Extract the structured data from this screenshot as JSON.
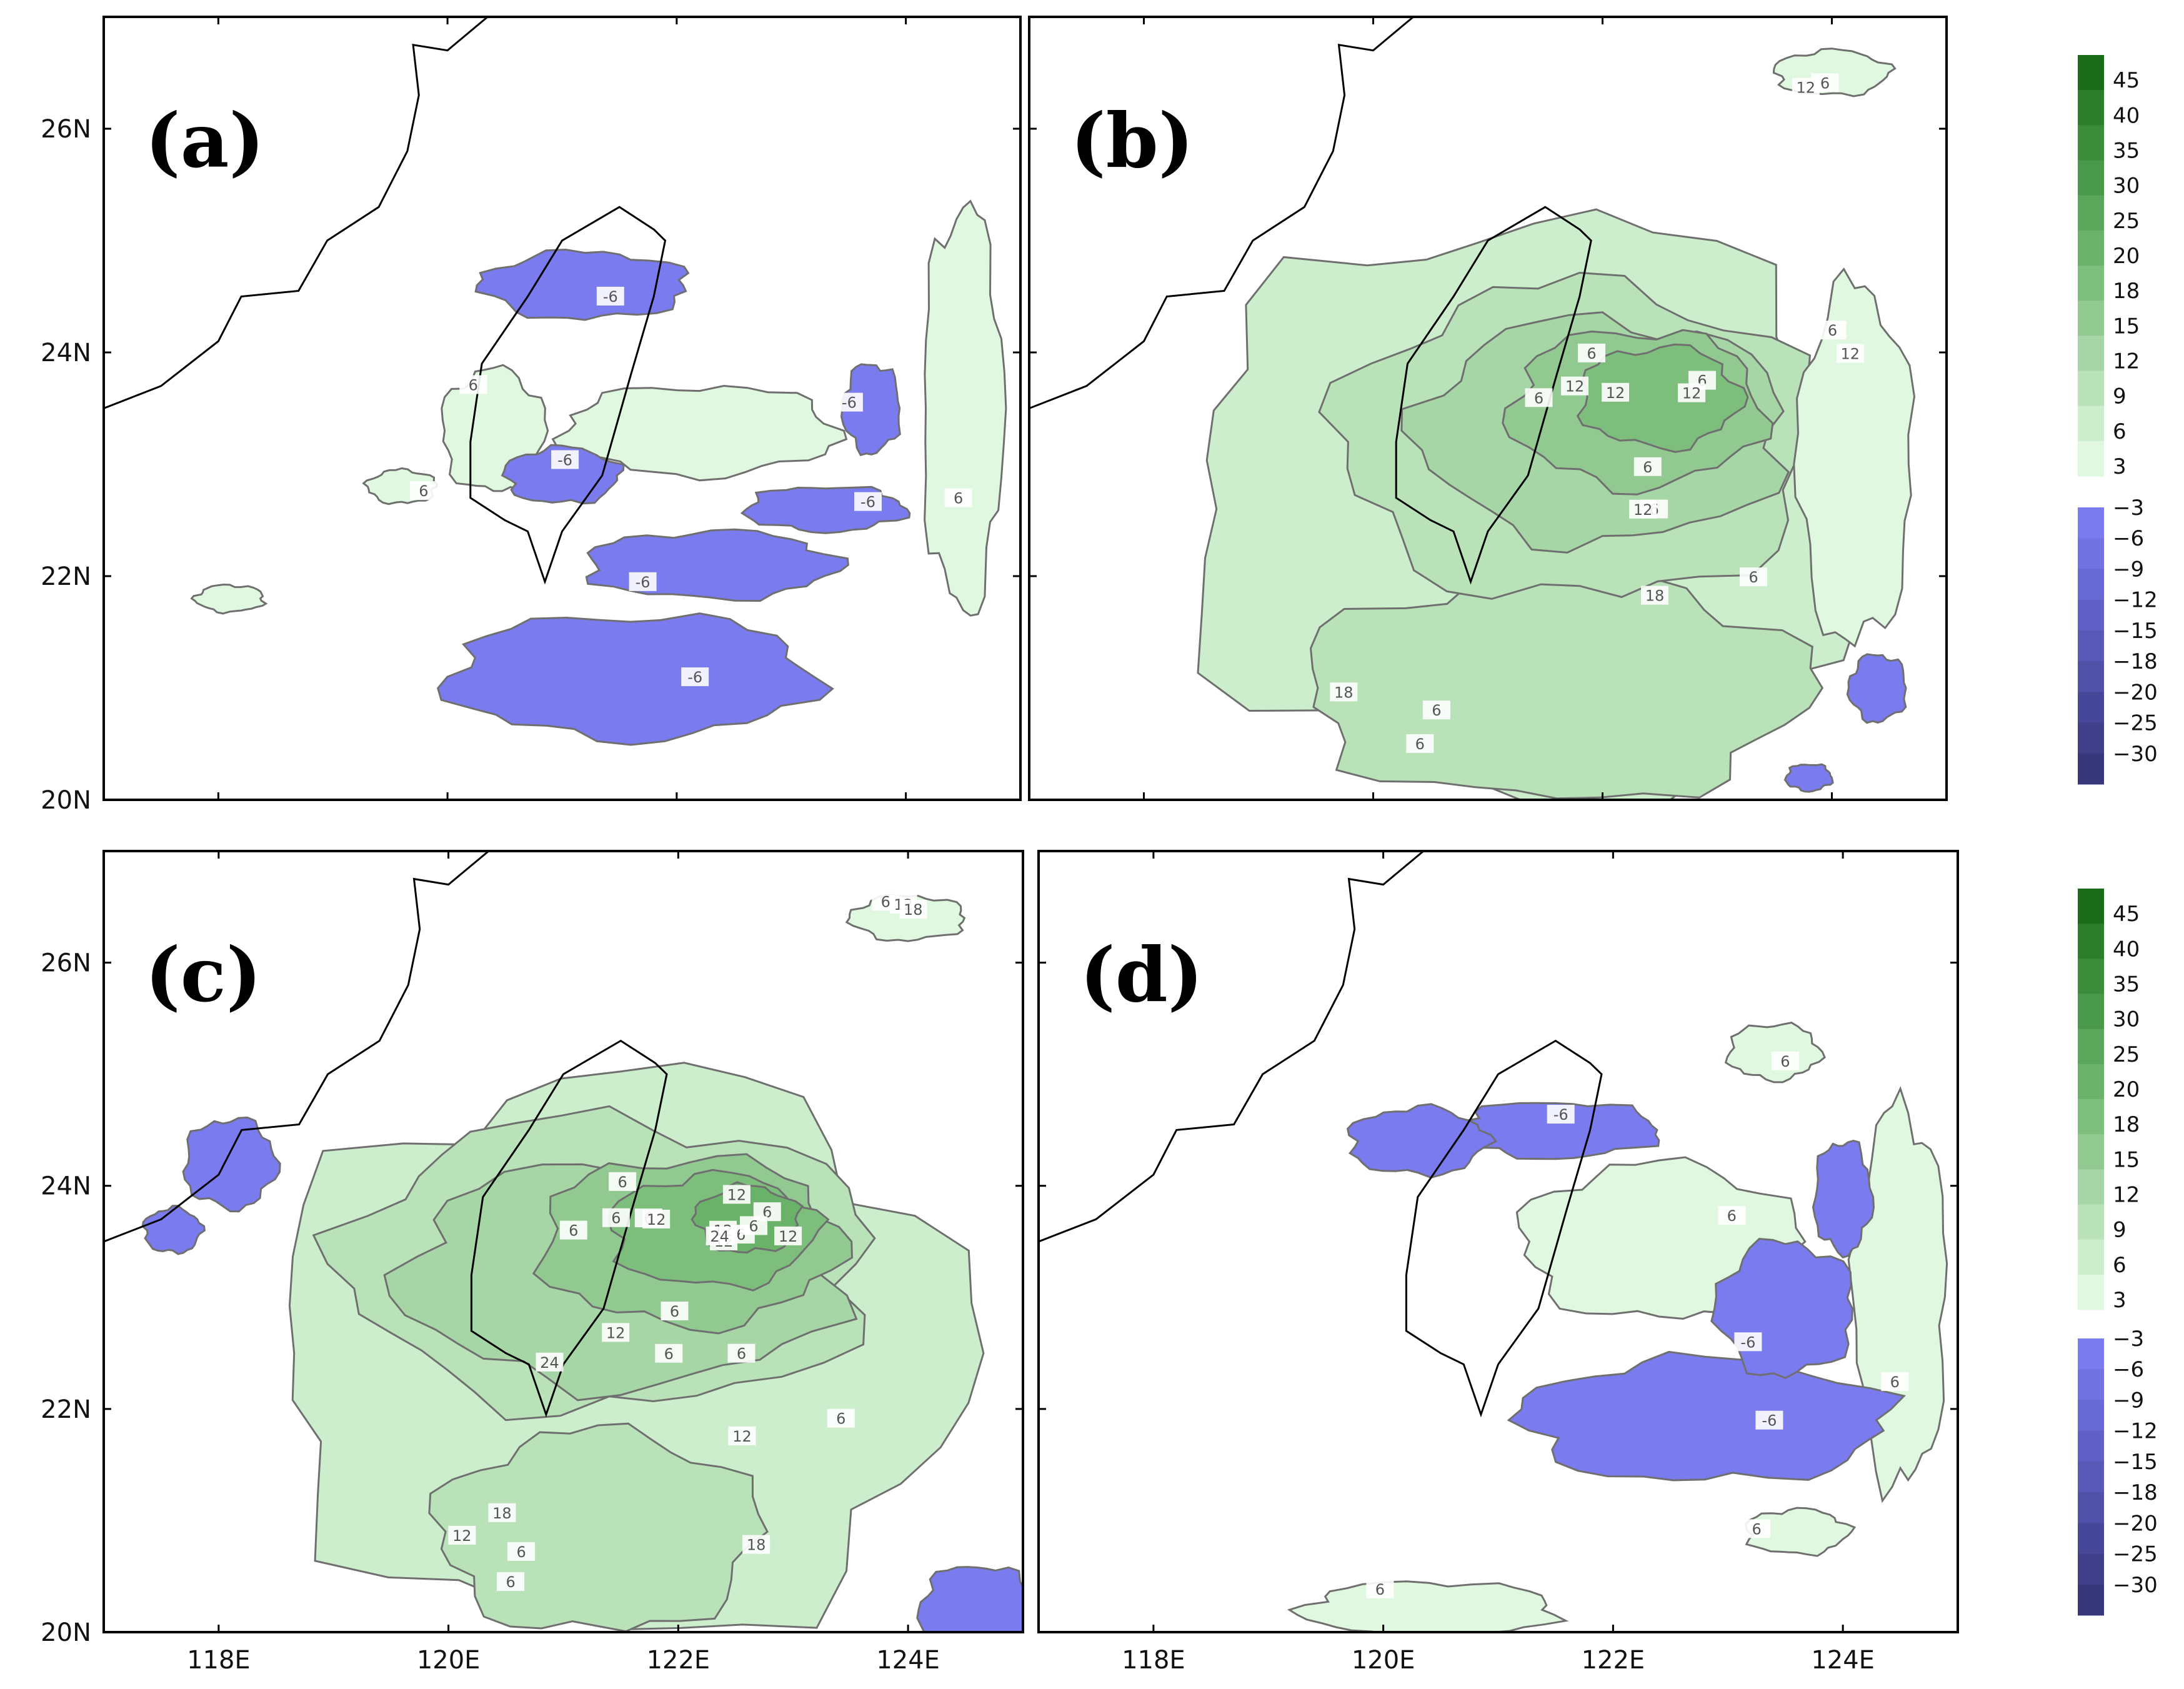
{
  "chart_data": {
    "type": "heatmap",
    "x_ticks": [
      "118E",
      "120E",
      "122E",
      "124E"
    ],
    "x_tick_values": [
      118,
      120,
      122,
      124
    ],
    "y_ticks": [
      "20N",
      "22N",
      "24N",
      "26N"
    ],
    "y_tick_values": [
      20,
      22,
      24,
      26
    ],
    "xlim": [
      117,
      125
    ],
    "ylim": [
      20,
      27
    ],
    "colorbar": {
      "positive_labels": [
        "45",
        "40",
        "35",
        "30",
        "25",
        "20",
        "18",
        "15",
        "12",
        "9",
        "6",
        "3"
      ],
      "negative_labels": [
        "-3",
        "-6",
        "-9",
        "-12",
        "-15",
        "-18",
        "-20",
        "-25",
        "-30"
      ],
      "positive_colors": [
        "#1a6b1a",
        "#2c7d2c",
        "#3b8c3b",
        "#4a994a",
        "#5aa65a",
        "#6ab26a",
        "#7dbe7d",
        "#91c991",
        "#a6d6a6",
        "#b9e2b9",
        "#cdeecd",
        "#dff8df"
      ],
      "negative_colors": [
        "#7b7bf0",
        "#7272e3",
        "#6969d5",
        "#6060c6",
        "#5858b7",
        "#5050a8",
        "#474799",
        "#3f3f8a",
        "#37377b"
      ]
    },
    "panels": [
      {
        "label": "(a)",
        "contour_labels": [
          "-6",
          "-6",
          "-6",
          "-6",
          "-6",
          "-6",
          "6",
          "6",
          "6"
        ],
        "positive_regions": [
          {
            "level": 3,
            "lon": 122.2,
            "lat": 23.3,
            "rx": 1.2,
            "ry": 0.4
          },
          {
            "level": 3,
            "lon": 124.5,
            "lat": 23.5,
            "rx": 0.35,
            "ry": 1.8
          },
          {
            "level": 3,
            "lon": 120.4,
            "lat": 23.3,
            "rx": 0.45,
            "ry": 0.55
          },
          {
            "level": 3,
            "lon": 119.6,
            "lat": 22.8,
            "rx": 0.3,
            "ry": 0.15
          },
          {
            "level": 3,
            "lon": 118.1,
            "lat": 21.8,
            "rx": 0.3,
            "ry": 0.12
          }
        ],
        "negative_regions": [
          {
            "level": -3,
            "lon": 121.6,
            "lat": 21.1,
            "rx": 1.6,
            "ry": 0.55
          },
          {
            "level": -3,
            "lon": 122.3,
            "lat": 22.1,
            "rx": 1.1,
            "ry": 0.3
          },
          {
            "level": -3,
            "lon": 121.0,
            "lat": 22.9,
            "rx": 0.5,
            "ry": 0.25
          },
          {
            "level": -3,
            "lon": 121.2,
            "lat": 24.6,
            "rx": 0.9,
            "ry": 0.3
          },
          {
            "level": -3,
            "lon": 123.7,
            "lat": 23.5,
            "rx": 0.25,
            "ry": 0.4
          },
          {
            "level": -3,
            "lon": 123.3,
            "lat": 22.6,
            "rx": 0.7,
            "ry": 0.2
          }
        ]
      },
      {
        "label": "(b)",
        "contour_labels": [
          "6",
          "6",
          "6",
          "6",
          "6",
          "6",
          "6",
          "6",
          "6",
          "6",
          "12",
          "12",
          "12",
          "12",
          "12",
          "12",
          "18",
          "18"
        ],
        "positive_regions": [
          {
            "level": 6,
            "lon": 121.4,
            "lat": 22.6,
            "rx": 3.0,
            "ry": 2.6
          },
          {
            "level": 9,
            "lon": 121.6,
            "lat": 21.0,
            "rx": 2.2,
            "ry": 1.0
          },
          {
            "level": 9,
            "lon": 121.8,
            "lat": 23.2,
            "rx": 2.1,
            "ry": 1.4
          },
          {
            "level": 12,
            "lon": 122.0,
            "lat": 23.3,
            "rx": 1.6,
            "ry": 1.0
          },
          {
            "level": 15,
            "lon": 122.3,
            "lat": 23.5,
            "rx": 1.1,
            "ry": 0.7
          },
          {
            "level": 18,
            "lon": 122.5,
            "lat": 23.6,
            "rx": 0.7,
            "ry": 0.45
          },
          {
            "level": 3,
            "lon": 124.0,
            "lat": 26.5,
            "rx": 0.5,
            "ry": 0.2
          },
          {
            "level": 3,
            "lon": 124.2,
            "lat": 23.0,
            "rx": 0.5,
            "ry": 1.6
          }
        ],
        "negative_regions": [
          {
            "level": -3,
            "lon": 124.4,
            "lat": 21.0,
            "rx": 0.25,
            "ry": 0.3
          },
          {
            "level": -3,
            "lon": 123.8,
            "lat": 20.2,
            "rx": 0.2,
            "ry": 0.12
          }
        ]
      },
      {
        "label": "(c)",
        "contour_labels": [
          "6",
          "6",
          "6",
          "6",
          "6",
          "6",
          "6",
          "6",
          "6",
          "6",
          "6",
          "6",
          "6",
          "6",
          "12",
          "12",
          "12",
          "12",
          "12",
          "12",
          "12",
          "12",
          "12",
          "18",
          "18",
          "18",
          "24",
          "24"
        ],
        "positive_regions": [
          {
            "level": 6,
            "lon": 121.5,
            "lat": 22.5,
            "rx": 3.0,
            "ry": 2.5
          },
          {
            "level": 9,
            "lon": 121.3,
            "lat": 20.9,
            "rx": 1.4,
            "ry": 0.9
          },
          {
            "level": 9,
            "lon": 121.4,
            "lat": 23.3,
            "rx": 2.3,
            "ry": 1.3
          },
          {
            "level": 12,
            "lon": 121.5,
            "lat": 23.2,
            "rx": 1.9,
            "ry": 1.0
          },
          {
            "level": 15,
            "lon": 122.1,
            "lat": 23.5,
            "rx": 1.3,
            "ry": 0.75
          },
          {
            "level": 18,
            "lon": 122.3,
            "lat": 23.6,
            "rx": 0.9,
            "ry": 0.5
          },
          {
            "level": 20,
            "lon": 122.6,
            "lat": 23.7,
            "rx": 0.45,
            "ry": 0.3
          },
          {
            "level": 3,
            "lon": 124.0,
            "lat": 26.4,
            "rx": 0.5,
            "ry": 0.2
          }
        ],
        "negative_regions": [
          {
            "level": -3,
            "lon": 124.6,
            "lat": 20.2,
            "rx": 0.5,
            "ry": 0.4
          },
          {
            "level": -3,
            "lon": 118.1,
            "lat": 24.2,
            "rx": 0.4,
            "ry": 0.4
          },
          {
            "level": -3,
            "lon": 117.6,
            "lat": 23.6,
            "rx": 0.25,
            "ry": 0.2
          }
        ]
      },
      {
        "label": "(d)",
        "contour_labels": [
          "-6",
          "-6",
          "-6",
          "6",
          "6",
          "6",
          "6",
          "6"
        ],
        "positive_regions": [
          {
            "level": 3,
            "lon": 122.4,
            "lat": 23.5,
            "rx": 1.2,
            "ry": 0.7
          },
          {
            "level": 3,
            "lon": 124.5,
            "lat": 23.0,
            "rx": 0.4,
            "ry": 1.7
          },
          {
            "level": 3,
            "lon": 120.4,
            "lat": 20.2,
            "rx": 1.1,
            "ry": 0.25
          },
          {
            "level": 3,
            "lon": 123.4,
            "lat": 25.2,
            "rx": 0.4,
            "ry": 0.25
          },
          {
            "level": 3,
            "lon": 123.6,
            "lat": 20.9,
            "rx": 0.45,
            "ry": 0.2
          }
        ],
        "negative_regions": [
          {
            "level": -3,
            "lon": 122.8,
            "lat": 21.9,
            "rx": 1.6,
            "ry": 0.55
          },
          {
            "level": -3,
            "lon": 123.5,
            "lat": 22.9,
            "rx": 0.6,
            "ry": 0.6
          },
          {
            "level": -3,
            "lon": 121.5,
            "lat": 24.5,
            "rx": 0.9,
            "ry": 0.25
          },
          {
            "level": -3,
            "lon": 124.0,
            "lat": 23.9,
            "rx": 0.25,
            "ry": 0.5
          },
          {
            "level": -3,
            "lon": 120.3,
            "lat": 24.4,
            "rx": 0.6,
            "ry": 0.3
          }
        ]
      }
    ],
    "taiwan_outline": [
      [
        121.8,
        25.1
      ],
      [
        121.5,
        25.3
      ],
      [
        121.0,
        25.0
      ],
      [
        120.7,
        24.5
      ],
      [
        120.3,
        23.9
      ],
      [
        120.2,
        23.2
      ],
      [
        120.2,
        22.7
      ],
      [
        120.5,
        22.5
      ],
      [
        120.7,
        22.4
      ],
      [
        120.85,
        21.95
      ],
      [
        121.0,
        22.4
      ],
      [
        121.35,
        22.9
      ],
      [
        121.6,
        23.8
      ],
      [
        121.8,
        24.5
      ],
      [
        121.9,
        25.0
      ]
    ],
    "coastline": [
      [
        117.0,
        23.5
      ],
      [
        117.5,
        23.7
      ],
      [
        118.0,
        24.1
      ],
      [
        118.2,
        24.5
      ],
      [
        118.7,
        24.55
      ],
      [
        118.95,
        25.0
      ],
      [
        119.4,
        25.3
      ],
      [
        119.65,
        25.8
      ],
      [
        119.75,
        26.3
      ],
      [
        119.7,
        26.75
      ],
      [
        120.0,
        26.7
      ],
      [
        120.35,
        27.0
      ]
    ]
  }
}
